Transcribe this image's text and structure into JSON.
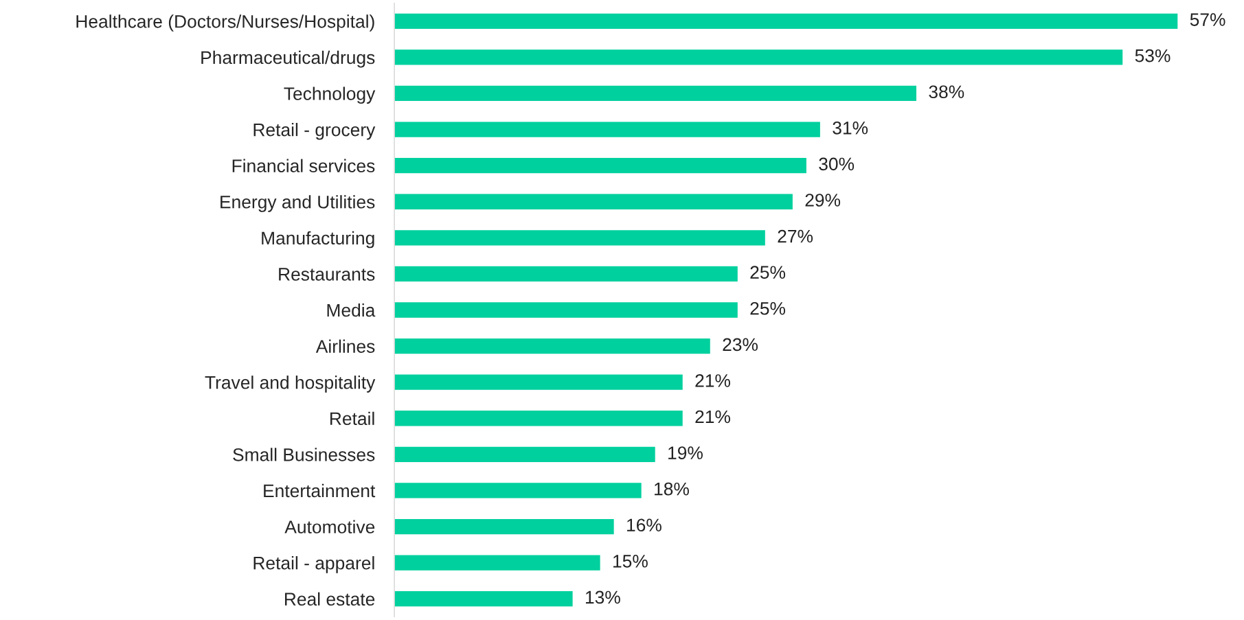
{
  "chart_data": {
    "type": "bar",
    "orientation": "horizontal",
    "categories": [
      "Healthcare (Doctors/Nurses/Hospital)",
      "Pharmaceutical/drugs",
      "Technology",
      "Retail - grocery",
      "Financial services",
      "Energy and Utilities",
      "Manufacturing",
      "Restaurants",
      "Media",
      "Airlines",
      "Travel and hospitality",
      "Retail",
      "Small Businesses",
      "Entertainment",
      "Automotive",
      "Retail - apparel",
      "Real estate"
    ],
    "values": [
      57,
      53,
      38,
      31,
      30,
      29,
      27,
      25,
      25,
      23,
      21,
      21,
      19,
      18,
      16,
      15,
      13
    ],
    "value_labels": [
      "57%",
      "53%",
      "38%",
      "31%",
      "30%",
      "29%",
      "27%",
      "25%",
      "25%",
      "23%",
      "21%",
      "21%",
      "19%",
      "18%",
      "16%",
      "15%",
      "13%"
    ],
    "color": "#00d09e",
    "grid": false,
    "legend": false
  }
}
